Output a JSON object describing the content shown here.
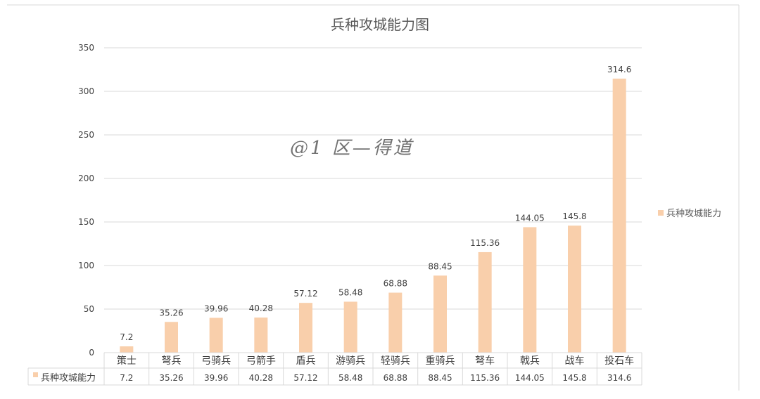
{
  "chart_data": {
    "type": "bar",
    "title": "兵种攻城能力图",
    "categories": [
      "策士",
      "弩兵",
      "弓骑兵",
      "弓箭手",
      "盾兵",
      "游骑兵",
      "轻骑兵",
      "重骑兵",
      "弩车",
      "戟兵",
      "战车",
      "投石车"
    ],
    "series": [
      {
        "name": "兵种攻城能力",
        "values": [
          7.2,
          35.26,
          39.96,
          40.28,
          57.12,
          58.48,
          68.88,
          88.45,
          115.36,
          144.05,
          145.8,
          314.6
        ],
        "labels": [
          "7.2",
          "35.26",
          "39.96",
          "40.28",
          "57.12",
          "58.48",
          "68.88",
          "88.45",
          "115.36",
          "144.05",
          "145.8",
          "314.6"
        ],
        "color": "#f9cfab"
      }
    ],
    "ylim": [
      0,
      350
    ],
    "yticks": [
      "0",
      "50",
      "100",
      "150",
      "200",
      "250",
      "300",
      "350"
    ],
    "ytick_values": [
      0,
      50,
      100,
      150,
      200,
      250,
      300,
      350
    ],
    "grid": true,
    "legend_position": "right",
    "data_table": true,
    "gridline_color": "#d9d9d9",
    "text_color": "#404040"
  },
  "watermark": "@1 区—得道"
}
